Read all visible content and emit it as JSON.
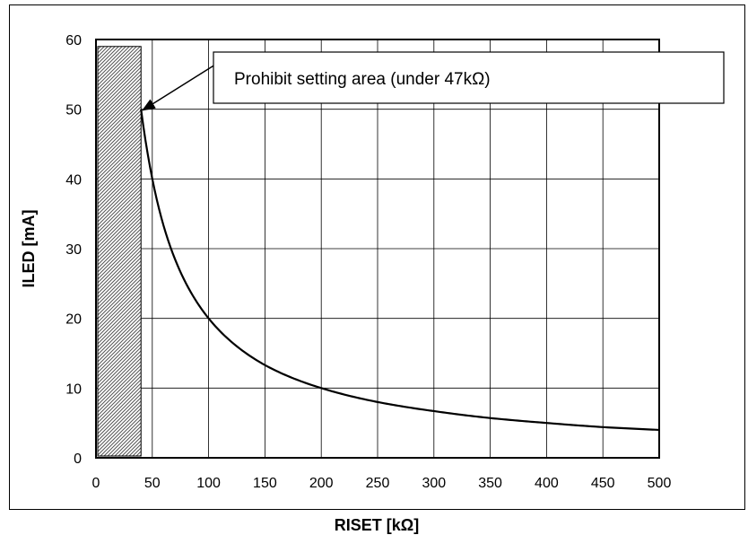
{
  "chart_data": {
    "type": "line",
    "xlabel": "RISET [kΩ]",
    "ylabel": "ILED [mA]",
    "xlim": [
      0,
      500
    ],
    "ylim": [
      0,
      60
    ],
    "x_ticks": [
      0,
      50,
      100,
      150,
      200,
      250,
      300,
      350,
      400,
      450,
      500
    ],
    "y_ticks": [
      0,
      10,
      20,
      30,
      40,
      50,
      60
    ],
    "x_tick_labels": [
      "0",
      "50",
      "100",
      "150",
      "200",
      "250",
      "300",
      "350",
      "400",
      "450",
      "500"
    ],
    "y_tick_labels": [
      "0",
      "10",
      "20",
      "30",
      "40",
      "50",
      "60"
    ],
    "grid": true,
    "series": [
      {
        "x": [
          40,
          47,
          60,
          80,
          100,
          125,
          150,
          200,
          250,
          300,
          350,
          400,
          450,
          500
        ],
        "y": [
          50,
          42.6,
          33.3,
          25,
          20,
          16,
          13.3,
          10,
          8,
          6.7,
          5.7,
          5,
          4.4,
          4
        ],
        "color": "#000000"
      }
    ],
    "shaded_region": {
      "x": [
        0,
        40
      ],
      "y": [
        0,
        59
      ],
      "pattern": "diagonal-hatch"
    },
    "annotation": {
      "text": "Prohibit setting area (under 47kΩ)",
      "arrow_to": {
        "x": 40,
        "y": 50
      }
    }
  }
}
